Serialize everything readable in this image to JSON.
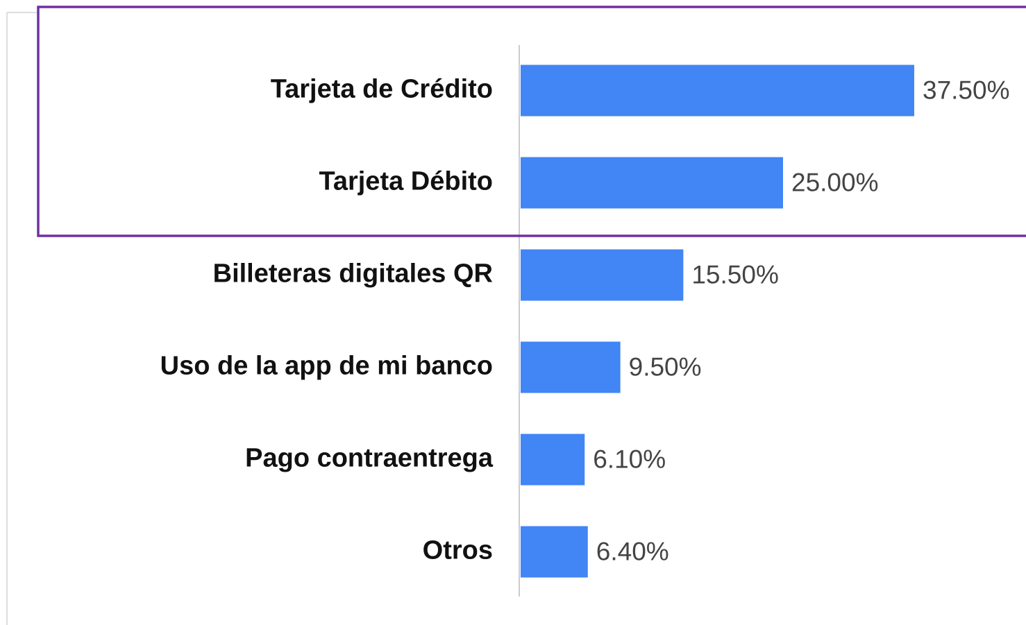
{
  "chart_data": {
    "type": "bar",
    "orientation": "horizontal",
    "categories": [
      "Tarjeta de Crédito",
      "Tarjeta Débito",
      "Billeteras digitales QR",
      "Uso de la app de mi banco",
      "Pago contraentrega",
      "Otros"
    ],
    "values": [
      37.5,
      25,
      15.5,
      9.5,
      6.1,
      6.4
    ],
    "value_labels": [
      "37.50%",
      "25.00%",
      "15.50%",
      "9.50%",
      "6.10%",
      "6.40%"
    ],
    "color": "#4285f4"
  }
}
